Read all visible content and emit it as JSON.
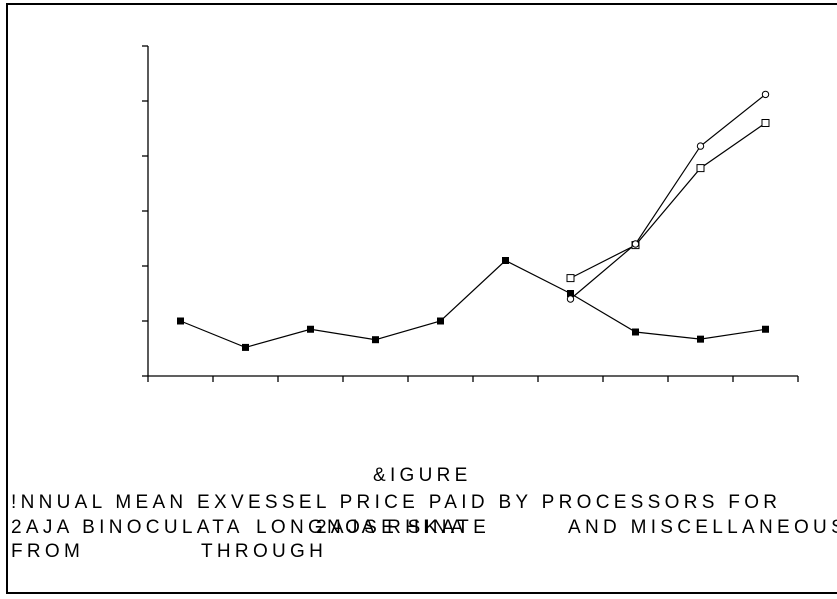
{
  "chart_data": {
    "type": "line",
    "title": "",
    "xlabel": "",
    "ylabel": "",
    "grid": false,
    "legend": "none",
    "ylim": [
      0,
      6
    ],
    "y_ticks": [
      0,
      1,
      2,
      3,
      4,
      5,
      6
    ],
    "x": [
      1,
      2,
      3,
      4,
      5,
      6,
      7,
      8,
      9,
      10
    ],
    "xlim": [
      0.5,
      10.5
    ],
    "series": [
      {
        "marker": "filled-square",
        "x": [
          1,
          2,
          3,
          4,
          5,
          6,
          7,
          8,
          9,
          10
        ],
        "values": [
          1.0,
          0.52,
          0.85,
          0.66,
          1.0,
          2.1,
          1.5,
          0.8,
          0.67,
          0.85
        ]
      },
      {
        "marker": "open-square",
        "x": [
          7,
          8,
          9,
          10
        ],
        "values": [
          1.78,
          2.38,
          3.78,
          4.6
        ]
      },
      {
        "marker": "open-circle",
        "x": [
          7,
          8,
          9,
          10
        ],
        "values": [
          1.4,
          2.4,
          4.18,
          5.12
        ]
      }
    ]
  },
  "caption": {
    "figure_label": "&IGURE",
    "line1": "!NNUAL MEAN EXVESSEL PRICE PAID BY PROCESSORS FOR",
    "line2a": "2AJA BINOCULATA",
    "line2b": "LONGNOSE SKATE",
    "line2c": "2AJA RHINA",
    "line2d": "AND MISCELLANEOUS",
    "line3a": "FROM",
    "line3b": "THROUGH"
  },
  "colors": {
    "line": "#000000",
    "background": "#ffffff"
  }
}
